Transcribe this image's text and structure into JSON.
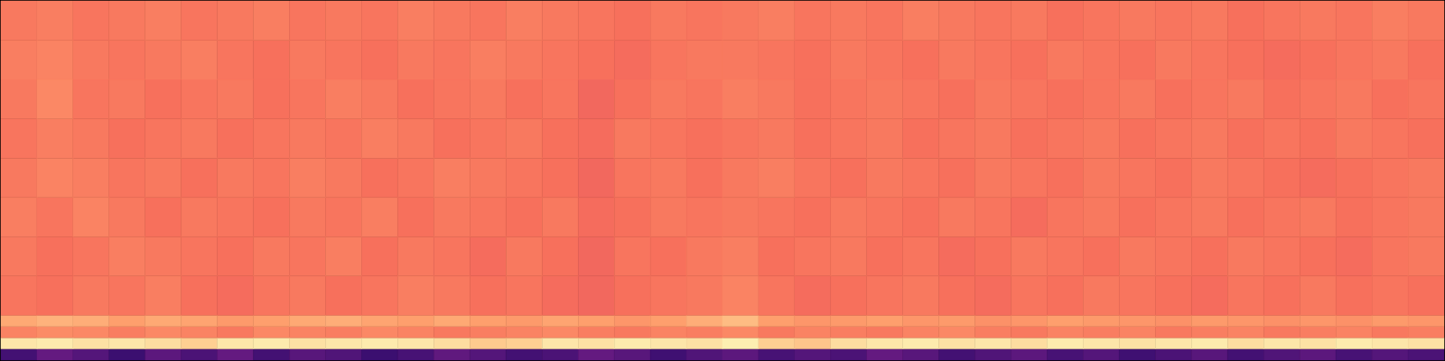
{
  "chart_data": {
    "type": "heatmap",
    "tick_labels": false,
    "xlim": [
      0,
      40
    ],
    "ylim": [
      0,
      32
    ],
    "x_bins": [
      0,
      1,
      2,
      3,
      4,
      5,
      6,
      7,
      8,
      9,
      10,
      11,
      12,
      13,
      14,
      15,
      16,
      17,
      18,
      19,
      20,
      21,
      22,
      23,
      24,
      25,
      26,
      27,
      28,
      29,
      30,
      31,
      32,
      33,
      34,
      35,
      36,
      37,
      38,
      39,
      40
    ],
    "y_bins": [
      0,
      1,
      2,
      3,
      4,
      7.5,
      11,
      14.5,
      18,
      21.5,
      25,
      28.5,
      32
    ],
    "color_range": [
      0,
      1
    ],
    "cells": [
      [
        0.22,
        0.3,
        0.26,
        0.2,
        0.28,
        0.24,
        0.3,
        0.22,
        0.27,
        0.25,
        0.2,
        0.23,
        0.29,
        0.26,
        0.22,
        0.24,
        0.3,
        0.27,
        0.21,
        0.25,
        0.28,
        0.23,
        0.26,
        0.24,
        0.3,
        0.27,
        0.22,
        0.25,
        0.28,
        0.23,
        0.26,
        0.21,
        0.24,
        0.27,
        0.22,
        0.25,
        0.28,
        0.23,
        0.26,
        0.24
      ],
      [
        0.95,
        0.96,
        0.94,
        0.95,
        0.93,
        0.9,
        0.95,
        0.96,
        0.94,
        0.95,
        0.96,
        0.95,
        0.93,
        0.89,
        0.9,
        0.95,
        0.94,
        0.96,
        0.95,
        0.94,
        0.97,
        0.9,
        0.88,
        0.93,
        0.95,
        0.96,
        0.94,
        0.95,
        0.93,
        0.96,
        0.95,
        0.94,
        0.95,
        0.96,
        0.93,
        0.95,
        0.94,
        0.96,
        0.95,
        0.94
      ],
      [
        0.74,
        0.76,
        0.75,
        0.73,
        0.75,
        0.74,
        0.72,
        0.75,
        0.74,
        0.73,
        0.75,
        0.74,
        0.72,
        0.73,
        0.74,
        0.75,
        0.73,
        0.72,
        0.74,
        0.73,
        0.75,
        0.72,
        0.74,
        0.73,
        0.72,
        0.74,
        0.75,
        0.73,
        0.72,
        0.74,
        0.73,
        0.74,
        0.72,
        0.73,
        0.74,
        0.72,
        0.73,
        0.74,
        0.72,
        0.73
      ],
      [
        0.82,
        0.84,
        0.83,
        0.8,
        0.82,
        0.81,
        0.79,
        0.8,
        0.82,
        0.83,
        0.81,
        0.8,
        0.82,
        0.8,
        0.79,
        0.81,
        0.8,
        0.78,
        0.8,
        0.83,
        0.86,
        0.8,
        0.78,
        0.79,
        0.8,
        0.78,
        0.79,
        0.77,
        0.78,
        0.8,
        0.79,
        0.78,
        0.77,
        0.79,
        0.78,
        0.77,
        0.78,
        0.77,
        0.79,
        0.78
      ],
      [
        0.71,
        0.7,
        0.72,
        0.71,
        0.73,
        0.7,
        0.69,
        0.71,
        0.72,
        0.7,
        0.71,
        0.73,
        0.72,
        0.7,
        0.71,
        0.69,
        0.68,
        0.7,
        0.71,
        0.72,
        0.74,
        0.71,
        0.69,
        0.7,
        0.71,
        0.72,
        0.7,
        0.69,
        0.71,
        0.7,
        0.72,
        0.71,
        0.7,
        0.69,
        0.71,
        0.7,
        0.72,
        0.7,
        0.71,
        0.7
      ],
      [
        0.72,
        0.7,
        0.71,
        0.73,
        0.72,
        0.71,
        0.7,
        0.72,
        0.71,
        0.73,
        0.7,
        0.72,
        0.71,
        0.69,
        0.72,
        0.7,
        0.68,
        0.71,
        0.7,
        0.72,
        0.73,
        0.7,
        0.71,
        0.72,
        0.7,
        0.71,
        0.69,
        0.7,
        0.72,
        0.71,
        0.7,
        0.72,
        0.71,
        0.7,
        0.72,
        0.71,
        0.7,
        0.69,
        0.71,
        0.72
      ],
      [
        0.73,
        0.71,
        0.74,
        0.72,
        0.7,
        0.72,
        0.71,
        0.7,
        0.72,
        0.71,
        0.73,
        0.7,
        0.72,
        0.71,
        0.7,
        0.72,
        0.69,
        0.7,
        0.72,
        0.71,
        0.72,
        0.71,
        0.7,
        0.72,
        0.71,
        0.7,
        0.72,
        0.71,
        0.69,
        0.71,
        0.72,
        0.7,
        0.71,
        0.72,
        0.7,
        0.71,
        0.72,
        0.7,
        0.71,
        0.72
      ],
      [
        0.72,
        0.74,
        0.73,
        0.71,
        0.72,
        0.7,
        0.72,
        0.71,
        0.73,
        0.72,
        0.7,
        0.71,
        0.73,
        0.72,
        0.71,
        0.7,
        0.68,
        0.71,
        0.72,
        0.7,
        0.72,
        0.73,
        0.71,
        0.7,
        0.72,
        0.71,
        0.7,
        0.72,
        0.71,
        0.7,
        0.72,
        0.71,
        0.7,
        0.72,
        0.71,
        0.7,
        0.69,
        0.7,
        0.71,
        0.72
      ],
      [
        0.71,
        0.73,
        0.72,
        0.7,
        0.71,
        0.72,
        0.7,
        0.71,
        0.72,
        0.71,
        0.73,
        0.72,
        0.7,
        0.71,
        0.72,
        0.7,
        0.69,
        0.72,
        0.71,
        0.7,
        0.71,
        0.72,
        0.7,
        0.71,
        0.72,
        0.7,
        0.71,
        0.72,
        0.7,
        0.71,
        0.72,
        0.7,
        0.71,
        0.72,
        0.7,
        0.71,
        0.7,
        0.72,
        0.71,
        0.7
      ],
      [
        0.72,
        0.75,
        0.71,
        0.72,
        0.7,
        0.71,
        0.72,
        0.7,
        0.71,
        0.73,
        0.72,
        0.7,
        0.71,
        0.72,
        0.7,
        0.71,
        0.68,
        0.7,
        0.72,
        0.71,
        0.73,
        0.72,
        0.7,
        0.71,
        0.72,
        0.71,
        0.7,
        0.72,
        0.71,
        0.7,
        0.71,
        0.72,
        0.7,
        0.71,
        0.72,
        0.7,
        0.71,
        0.72,
        0.7,
        0.71
      ],
      [
        0.73,
        0.74,
        0.72,
        0.71,
        0.72,
        0.73,
        0.71,
        0.7,
        0.72,
        0.71,
        0.7,
        0.72,
        0.71,
        0.73,
        0.72,
        0.71,
        0.7,
        0.69,
        0.71,
        0.72,
        0.72,
        0.71,
        0.7,
        0.72,
        0.71,
        0.7,
        0.72,
        0.71,
        0.7,
        0.72,
        0.71,
        0.7,
        0.72,
        0.71,
        0.7,
        0.69,
        0.7,
        0.71,
        0.72,
        0.7
      ],
      [
        0.72,
        0.73,
        0.71,
        0.72,
        0.73,
        0.71,
        0.72,
        0.73,
        0.71,
        0.72,
        0.71,
        0.73,
        0.72,
        0.71,
        0.73,
        0.72,
        0.71,
        0.7,
        0.72,
        0.71,
        0.72,
        0.73,
        0.71,
        0.72,
        0.71,
        0.73,
        0.72,
        0.71,
        0.72,
        0.7,
        0.71,
        0.72,
        0.71,
        0.72,
        0.7,
        0.71,
        0.72,
        0.71,
        0.73,
        0.72
      ]
    ]
  }
}
